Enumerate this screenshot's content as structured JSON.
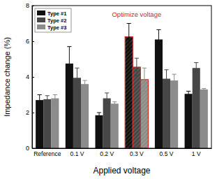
{
  "chart_data": {
    "type": "bar",
    "y_label": "Impedance change (%)",
    "x_label": "Applied voltage",
    "categories": [
      "Reference",
      "0.1 V",
      "0.2 V",
      "0.3 V",
      "0.5 V",
      "1 V"
    ],
    "series": [
      {
        "name": "Type #1",
        "color": "#111111",
        "values": [
          2.7,
          4.75,
          1.85,
          6.25,
          6.1,
          3.05
        ],
        "errors": [
          0.3,
          0.95,
          0.15,
          0.75,
          0.55,
          0.15
        ]
      },
      {
        "name": "Type #2",
        "color": "#474747",
        "values": [
          2.75,
          3.95,
          2.8,
          4.55,
          3.9,
          4.5
        ],
        "errors": [
          0.2,
          0.55,
          0.3,
          0.5,
          0.5,
          0.3
        ]
      },
      {
        "name": "Type #3",
        "color": "#8c8c8c",
        "values": [
          2.8,
          3.6,
          2.5,
          3.85,
          3.8,
          3.3
        ],
        "errors": [
          0.2,
          0.2,
          0.1,
          0.65,
          0.35,
          0.05
        ]
      }
    ],
    "annotations": [
      {
        "text": "Optimize voltage",
        "category": "0.3 V",
        "color": "#d62728"
      }
    ],
    "ylim": [
      0,
      8
    ],
    "yticks": [
      0,
      2,
      4,
      6,
      8
    ],
    "legend": "upper left",
    "grid": false
  }
}
